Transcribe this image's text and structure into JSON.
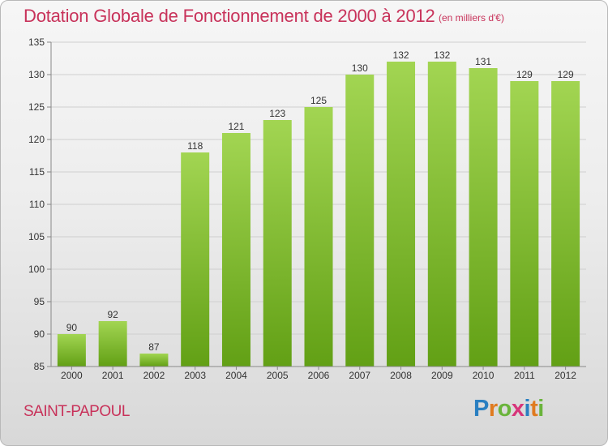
{
  "header": {
    "title": "Dotation Globale de Fonctionnement de 2000 à 2012",
    "unit": "(en milliers d'€)"
  },
  "footer": {
    "commune": "SAINT-PAPOUL",
    "logo_letters": [
      "P",
      "r",
      "o",
      "x",
      "i",
      "t",
      "i"
    ],
    "logo_colors": [
      "#2a7fc1",
      "#e07a1f",
      "#6ab43b",
      "#d7357a",
      "#2a7fc1",
      "#e07a1f",
      "#6ab43b"
    ]
  },
  "colors": {
    "bar_top": "#a2d552",
    "bar_bottom": "#62a015",
    "title": "#c8325a"
  },
  "chart_data": {
    "type": "bar",
    "categories": [
      "2000",
      "2001",
      "2002",
      "2003",
      "2004",
      "2005",
      "2006",
      "2007",
      "2008",
      "2009",
      "2010",
      "2011",
      "2012"
    ],
    "values": [
      90,
      92,
      87,
      118,
      121,
      123,
      125,
      130,
      132,
      132,
      131,
      129,
      129
    ],
    "ylim": [
      85,
      135
    ],
    "yticks": [
      85,
      90,
      95,
      100,
      105,
      110,
      115,
      120,
      125,
      130,
      135
    ],
    "grid": true
  }
}
